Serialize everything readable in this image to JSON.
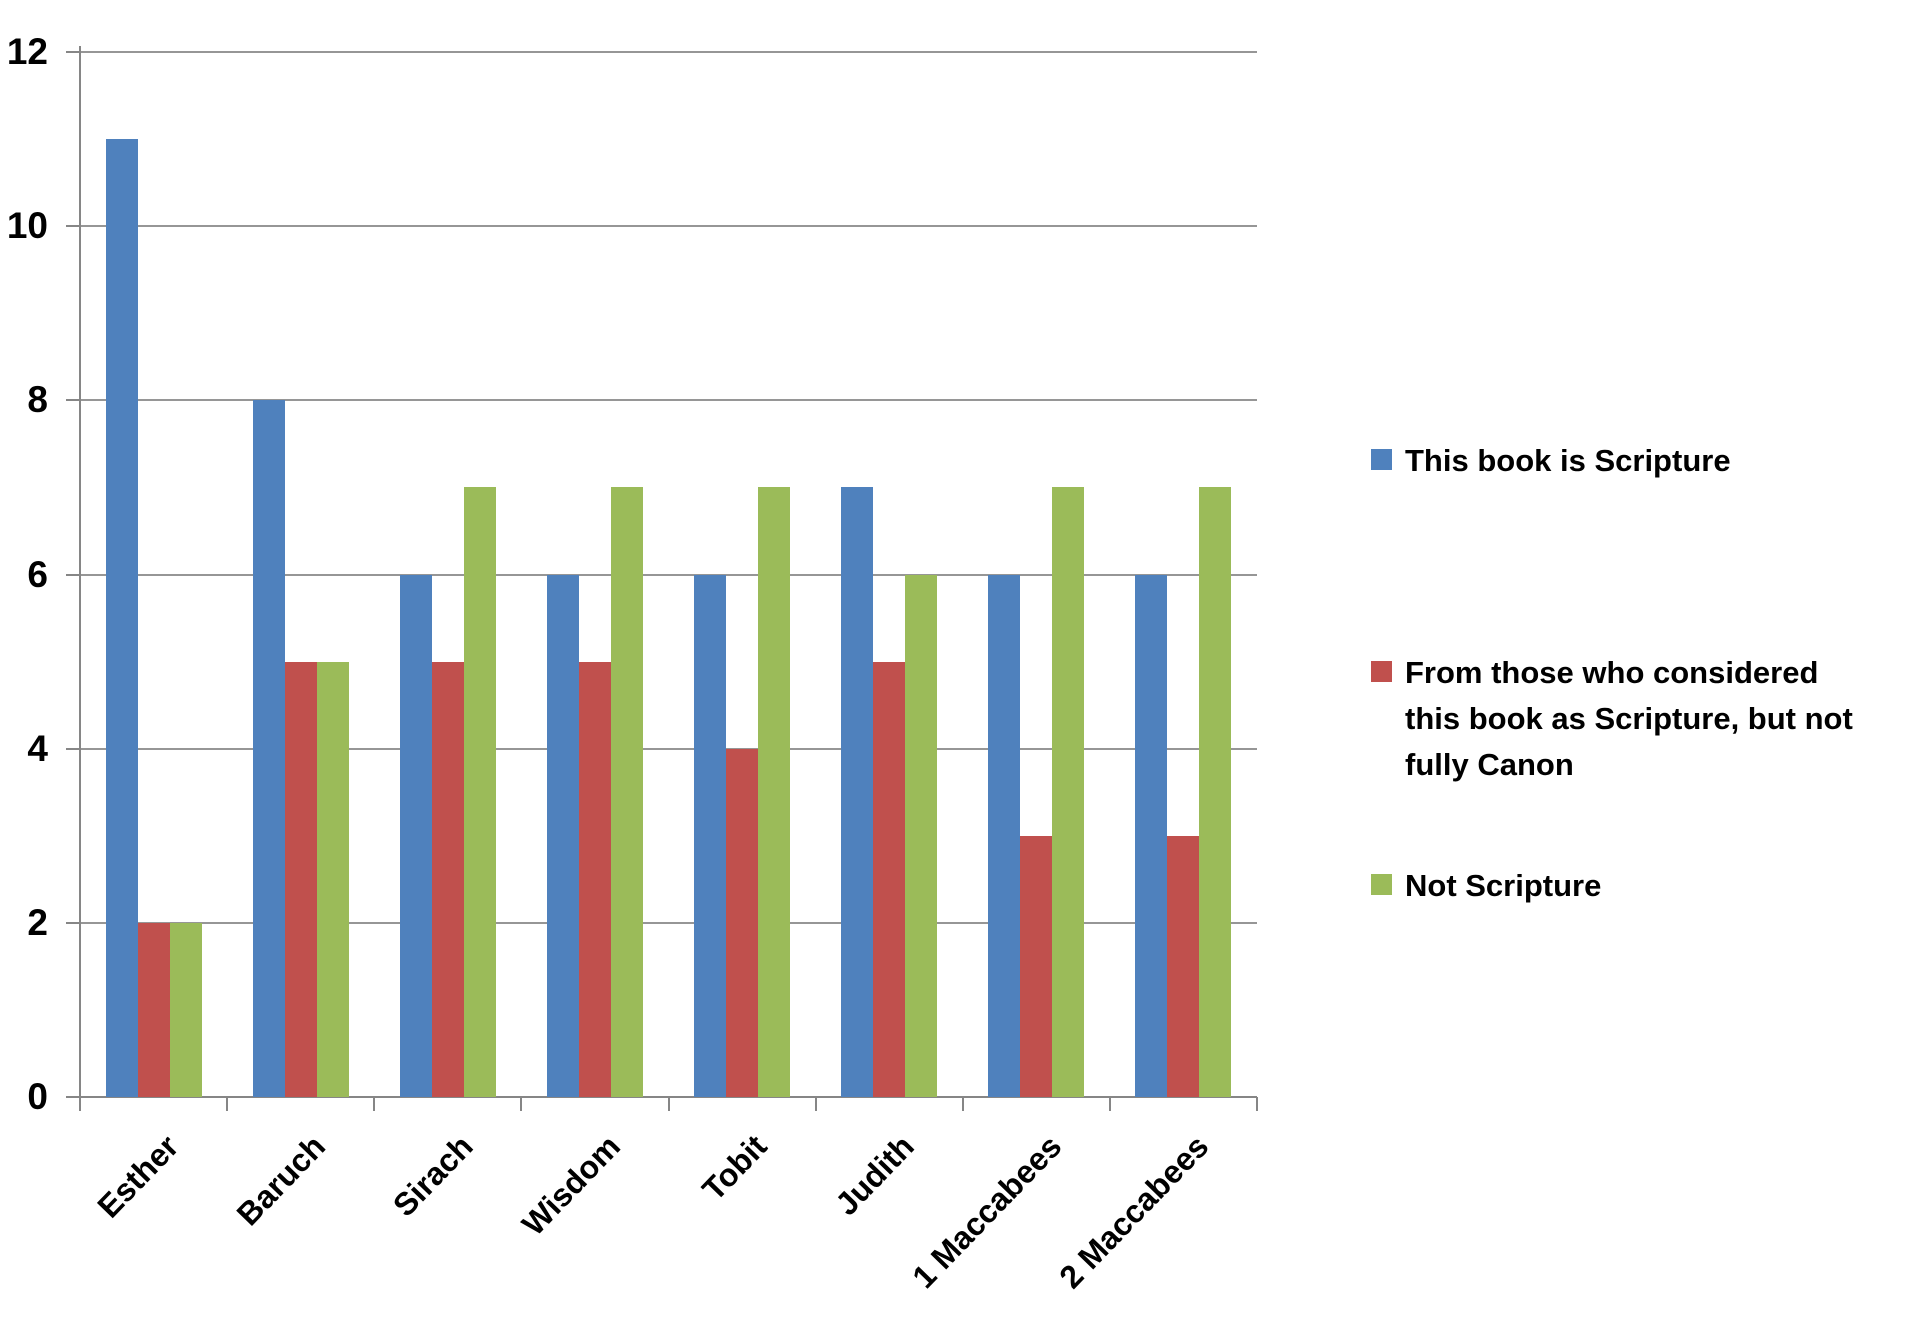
{
  "chart_data": {
    "type": "bar",
    "title": "",
    "categories": [
      "Esther",
      "Baruch",
      "Sirach",
      "Wisdom",
      "Tobit",
      "Judith",
      "1 Maccabees",
      "2 Maccabees"
    ],
    "series": [
      {
        "name": "This book is Scripture",
        "lines": [
          "This book is Scripture"
        ],
        "color": "#4F81BD",
        "values": [
          11,
          8,
          6,
          6,
          6,
          7,
          6,
          6
        ]
      },
      {
        "name": "From those who considered this book as Scripture, but not fully Canon",
        "lines": [
          "From those who considered",
          "this book as Scripture, but not",
          "fully Canon"
        ],
        "color": "#C0504D",
        "values": [
          2,
          5,
          5,
          5,
          4,
          5,
          3,
          3
        ]
      },
      {
        "name": "Not Scripture",
        "lines": [
          "Not Scripture"
        ],
        "color": "#9BBB59",
        "values": [
          2,
          5,
          7,
          7,
          7,
          6,
          7,
          7
        ]
      }
    ],
    "xlabel": "",
    "ylabel": "",
    "ylim": [
      0,
      12
    ],
    "yticks": [
      0,
      2,
      4,
      6,
      8,
      10,
      12
    ],
    "grid": "horizontal",
    "legend_position": "right"
  },
  "colors": {
    "background": "#FFFFFF",
    "gridline": "#969696",
    "axis": "#868686",
    "label_text": "#000000"
  }
}
